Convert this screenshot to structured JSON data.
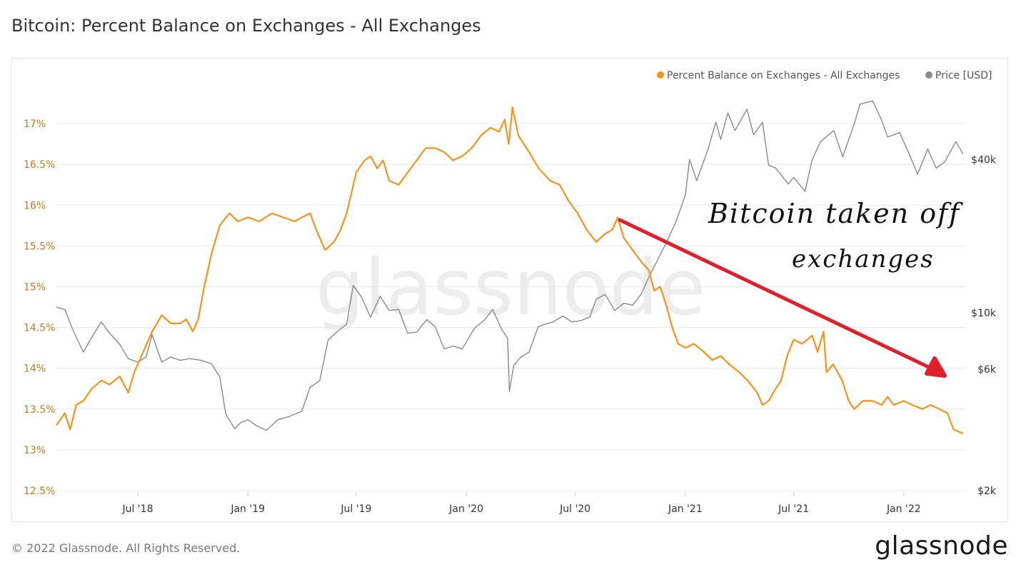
{
  "page": {
    "title": "Bitcoin: Percent Balance on Exchanges - All Exchanges",
    "copyright": "© 2022 Glassnode. All Rights Reserved.",
    "brand": "glassnode",
    "watermark": "glassnode"
  },
  "colors": {
    "balance": "#f7931a",
    "price": "#8a8a8a",
    "arrow": "#e01f2a",
    "grid": "#ececec",
    "left_axis_text": "#c87a1c",
    "right_axis_text": "#333333"
  },
  "annotation": {
    "line1": "Bitcoin taken off",
    "line2": "exchanges"
  },
  "chart_data": {
    "type": "line",
    "title": "Bitcoin: Percent Balance on Exchanges - All Exchanges",
    "legend": {
      "placement": "top-right",
      "items": [
        "Percent Balance on Exchanges - All Exchanges",
        "Price [USD]"
      ]
    },
    "x_axis": {
      "type": "time",
      "range": [
        "2018-02-15",
        "2022-04-15"
      ],
      "ticks": [
        {
          "date": "2018-07-01",
          "label": "Jul '18"
        },
        {
          "date": "2019-01-01",
          "label": "Jan '19"
        },
        {
          "date": "2019-07-01",
          "label": "Jul '19"
        },
        {
          "date": "2020-01-01",
          "label": "Jan '20"
        },
        {
          "date": "2020-07-01",
          "label": "Jul '20"
        },
        {
          "date": "2021-01-01",
          "label": "Jan '21"
        },
        {
          "date": "2021-07-01",
          "label": "Jul '21"
        },
        {
          "date": "2022-01-01",
          "label": "Jan '22"
        }
      ]
    },
    "y_left": {
      "range": [
        12.5,
        17.5
      ],
      "ticks": [
        12.5,
        13,
        13.5,
        14,
        14.5,
        15,
        15.5,
        16,
        16.5,
        17
      ],
      "tick_labels": [
        "12.5%",
        "13%",
        "13.5%",
        "14%",
        "14.5%",
        "15%",
        "15.5%",
        "16%",
        "16.5%",
        "17%"
      ]
    },
    "y_right": {
      "scale": "log",
      "range": [
        2000,
        80000
      ],
      "ticks": [
        2000,
        6000,
        10000,
        40000
      ],
      "tick_labels": [
        "$2k",
        "$6k",
        "$10k",
        "$40k"
      ]
    },
    "grid": true,
    "series": [
      {
        "name": "Percent Balance on Exchanges - All Exchanges",
        "axis": "left",
        "points": [
          [
            "2018-02-15",
            13.3
          ],
          [
            "2018-03-01",
            13.45
          ],
          [
            "2018-03-10",
            13.25
          ],
          [
            "2018-03-20",
            13.55
          ],
          [
            "2018-04-01",
            13.6
          ],
          [
            "2018-04-15",
            13.75
          ],
          [
            "2018-05-01",
            13.85
          ],
          [
            "2018-05-15",
            13.8
          ],
          [
            "2018-06-01",
            13.9
          ],
          [
            "2018-06-15",
            13.7
          ],
          [
            "2018-06-25",
            13.95
          ],
          [
            "2018-07-10",
            14.2
          ],
          [
            "2018-07-25",
            14.45
          ],
          [
            "2018-08-10",
            14.65
          ],
          [
            "2018-08-25",
            14.55
          ],
          [
            "2018-09-10",
            14.55
          ],
          [
            "2018-09-20",
            14.6
          ],
          [
            "2018-10-01",
            14.45
          ],
          [
            "2018-10-10",
            14.6
          ],
          [
            "2018-10-20",
            15.0
          ],
          [
            "2018-11-01",
            15.4
          ],
          [
            "2018-11-15",
            15.75
          ],
          [
            "2018-12-01",
            15.9
          ],
          [
            "2018-12-15",
            15.8
          ],
          [
            "2019-01-01",
            15.85
          ],
          [
            "2019-01-20",
            15.8
          ],
          [
            "2019-02-10",
            15.9
          ],
          [
            "2019-03-01",
            15.85
          ],
          [
            "2019-03-20",
            15.8
          ],
          [
            "2019-04-01",
            15.85
          ],
          [
            "2019-04-15",
            15.9
          ],
          [
            "2019-04-25",
            15.7
          ],
          [
            "2019-05-10",
            15.45
          ],
          [
            "2019-05-25",
            15.55
          ],
          [
            "2019-06-05",
            15.7
          ],
          [
            "2019-06-15",
            15.9
          ],
          [
            "2019-07-01",
            16.4
          ],
          [
            "2019-07-15",
            16.55
          ],
          [
            "2019-07-25",
            16.6
          ],
          [
            "2019-08-05",
            16.45
          ],
          [
            "2019-08-15",
            16.55
          ],
          [
            "2019-08-25",
            16.3
          ],
          [
            "2019-09-10",
            16.25
          ],
          [
            "2019-09-25",
            16.4
          ],
          [
            "2019-10-10",
            16.55
          ],
          [
            "2019-10-25",
            16.7
          ],
          [
            "2019-11-10",
            16.7
          ],
          [
            "2019-11-25",
            16.65
          ],
          [
            "2019-12-10",
            16.55
          ],
          [
            "2019-12-25",
            16.6
          ],
          [
            "2020-01-10",
            16.7
          ],
          [
            "2020-01-25",
            16.85
          ],
          [
            "2020-02-10",
            16.95
          ],
          [
            "2020-02-25",
            16.9
          ],
          [
            "2020-03-05",
            17.05
          ],
          [
            "2020-03-12",
            16.75
          ],
          [
            "2020-03-18",
            17.2
          ],
          [
            "2020-03-28",
            16.85
          ],
          [
            "2020-04-15",
            16.65
          ],
          [
            "2020-05-01",
            16.45
          ],
          [
            "2020-05-20",
            16.3
          ],
          [
            "2020-06-05",
            16.25
          ],
          [
            "2020-06-20",
            16.05
          ],
          [
            "2020-07-05",
            15.9
          ],
          [
            "2020-07-20",
            15.7
          ],
          [
            "2020-08-05",
            15.55
          ],
          [
            "2020-08-20",
            15.65
          ],
          [
            "2020-09-01",
            15.7
          ],
          [
            "2020-09-10",
            15.85
          ],
          [
            "2020-09-20",
            15.6
          ],
          [
            "2020-10-05",
            15.45
          ],
          [
            "2020-10-20",
            15.3
          ],
          [
            "2020-11-01",
            15.2
          ],
          [
            "2020-11-10",
            14.95
          ],
          [
            "2020-11-20",
            15.0
          ],
          [
            "2020-12-01",
            14.75
          ],
          [
            "2020-12-10",
            14.5
          ],
          [
            "2020-12-20",
            14.3
          ],
          [
            "2021-01-01",
            14.25
          ],
          [
            "2021-01-15",
            14.3
          ],
          [
            "2021-02-01",
            14.2
          ],
          [
            "2021-02-15",
            14.1
          ],
          [
            "2021-03-01",
            14.15
          ],
          [
            "2021-03-15",
            14.05
          ],
          [
            "2021-04-01",
            13.95
          ],
          [
            "2021-04-15",
            13.85
          ],
          [
            "2021-05-01",
            13.7
          ],
          [
            "2021-05-10",
            13.55
          ],
          [
            "2021-05-20",
            13.6
          ],
          [
            "2021-06-01",
            13.75
          ],
          [
            "2021-06-10",
            13.85
          ],
          [
            "2021-06-20",
            14.15
          ],
          [
            "2021-07-01",
            14.35
          ],
          [
            "2021-07-15",
            14.3
          ],
          [
            "2021-08-01",
            14.4
          ],
          [
            "2021-08-10",
            14.2
          ],
          [
            "2021-08-20",
            14.45
          ],
          [
            "2021-08-25",
            13.95
          ],
          [
            "2021-09-05",
            14.05
          ],
          [
            "2021-09-20",
            13.85
          ],
          [
            "2021-10-01",
            13.6
          ],
          [
            "2021-10-10",
            13.5
          ],
          [
            "2021-10-25",
            13.6
          ],
          [
            "2021-11-10",
            13.6
          ],
          [
            "2021-11-25",
            13.55
          ],
          [
            "2021-12-05",
            13.65
          ],
          [
            "2021-12-15",
            13.55
          ],
          [
            "2022-01-01",
            13.6
          ],
          [
            "2022-01-15",
            13.55
          ],
          [
            "2022-02-01",
            13.5
          ],
          [
            "2022-02-15",
            13.55
          ],
          [
            "2022-03-01",
            13.5
          ],
          [
            "2022-03-15",
            13.45
          ],
          [
            "2022-03-25",
            13.25
          ],
          [
            "2022-04-10",
            13.2
          ]
        ]
      },
      {
        "name": "Price [USD]",
        "axis": "right",
        "points": [
          [
            "2018-02-15",
            10500
          ],
          [
            "2018-03-01",
            10300
          ],
          [
            "2018-03-15",
            8500
          ],
          [
            "2018-04-01",
            7000
          ],
          [
            "2018-04-15",
            8000
          ],
          [
            "2018-05-01",
            9200
          ],
          [
            "2018-05-15",
            8300
          ],
          [
            "2018-06-01",
            7500
          ],
          [
            "2018-06-15",
            6600
          ],
          [
            "2018-07-01",
            6400
          ],
          [
            "2018-07-15",
            6700
          ],
          [
            "2018-07-25",
            8200
          ],
          [
            "2018-08-10",
            6400
          ],
          [
            "2018-08-25",
            6700
          ],
          [
            "2018-09-10",
            6500
          ],
          [
            "2018-09-25",
            6600
          ],
          [
            "2018-10-15",
            6500
          ],
          [
            "2018-11-01",
            6300
          ],
          [
            "2018-11-15",
            5600
          ],
          [
            "2018-11-25",
            4000
          ],
          [
            "2018-12-10",
            3500
          ],
          [
            "2018-12-20",
            3700
          ],
          [
            "2019-01-01",
            3800
          ],
          [
            "2019-01-15",
            3600
          ],
          [
            "2019-02-01",
            3450
          ],
          [
            "2019-02-20",
            3800
          ],
          [
            "2019-03-10",
            3900
          ],
          [
            "2019-04-01",
            4100
          ],
          [
            "2019-04-15",
            5100
          ],
          [
            "2019-05-01",
            5400
          ],
          [
            "2019-05-15",
            7800
          ],
          [
            "2019-06-01",
            8500
          ],
          [
            "2019-06-15",
            9000
          ],
          [
            "2019-06-26",
            12800
          ],
          [
            "2019-07-10",
            11500
          ],
          [
            "2019-07-25",
            9600
          ],
          [
            "2019-08-10",
            11600
          ],
          [
            "2019-08-25",
            10200
          ],
          [
            "2019-09-10",
            10300
          ],
          [
            "2019-09-25",
            8300
          ],
          [
            "2019-10-10",
            8400
          ],
          [
            "2019-10-27",
            9400
          ],
          [
            "2019-11-10",
            8800
          ],
          [
            "2019-11-25",
            7200
          ],
          [
            "2019-12-10",
            7400
          ],
          [
            "2019-12-25",
            7200
          ],
          [
            "2020-01-15",
            8700
          ],
          [
            "2020-02-01",
            9400
          ],
          [
            "2020-02-14",
            10300
          ],
          [
            "2020-02-28",
            8700
          ],
          [
            "2020-03-10",
            7900
          ],
          [
            "2020-03-13",
            4900
          ],
          [
            "2020-03-20",
            6200
          ],
          [
            "2020-04-01",
            6700
          ],
          [
            "2020-04-15",
            7000
          ],
          [
            "2020-04-30",
            8800
          ],
          [
            "2020-05-10",
            9000
          ],
          [
            "2020-05-25",
            9200
          ],
          [
            "2020-06-10",
            9700
          ],
          [
            "2020-06-25",
            9200
          ],
          [
            "2020-07-10",
            9300
          ],
          [
            "2020-07-25",
            9600
          ],
          [
            "2020-08-05",
            11300
          ],
          [
            "2020-08-20",
            11800
          ],
          [
            "2020-09-05",
            10200
          ],
          [
            "2020-09-20",
            10900
          ],
          [
            "2020-10-05",
            10700
          ],
          [
            "2020-10-20",
            11900
          ],
          [
            "2020-11-01",
            13800
          ],
          [
            "2020-11-15",
            16000
          ],
          [
            "2020-12-01",
            19000
          ],
          [
            "2020-12-17",
            23000
          ],
          [
            "2021-01-01",
            29000
          ],
          [
            "2021-01-08",
            40000
          ],
          [
            "2021-01-20",
            33000
          ],
          [
            "2021-02-08",
            44000
          ],
          [
            "2021-02-21",
            56000
          ],
          [
            "2021-03-01",
            48000
          ],
          [
            "2021-03-13",
            61000
          ],
          [
            "2021-03-25",
            52000
          ],
          [
            "2021-04-14",
            63000
          ],
          [
            "2021-04-25",
            50000
          ],
          [
            "2021-05-10",
            56000
          ],
          [
            "2021-05-20",
            38000
          ],
          [
            "2021-06-01",
            37000
          ],
          [
            "2021-06-22",
            32000
          ],
          [
            "2021-07-01",
            34000
          ],
          [
            "2021-07-20",
            30000
          ],
          [
            "2021-08-01",
            40000
          ],
          [
            "2021-08-15",
            47000
          ],
          [
            "2021-09-06",
            52000
          ],
          [
            "2021-09-21",
            41000
          ],
          [
            "2021-10-10",
            55000
          ],
          [
            "2021-10-20",
            66000
          ],
          [
            "2021-11-10",
            68000
          ],
          [
            "2021-11-25",
            57000
          ],
          [
            "2021-12-05",
            49000
          ],
          [
            "2021-12-25",
            51000
          ],
          [
            "2022-01-10",
            42000
          ],
          [
            "2022-01-24",
            35000
          ],
          [
            "2022-02-10",
            44000
          ],
          [
            "2022-02-24",
            37000
          ],
          [
            "2022-03-10",
            39000
          ],
          [
            "2022-03-29",
            47000
          ],
          [
            "2022-04-10",
            42000
          ]
        ]
      }
    ]
  }
}
